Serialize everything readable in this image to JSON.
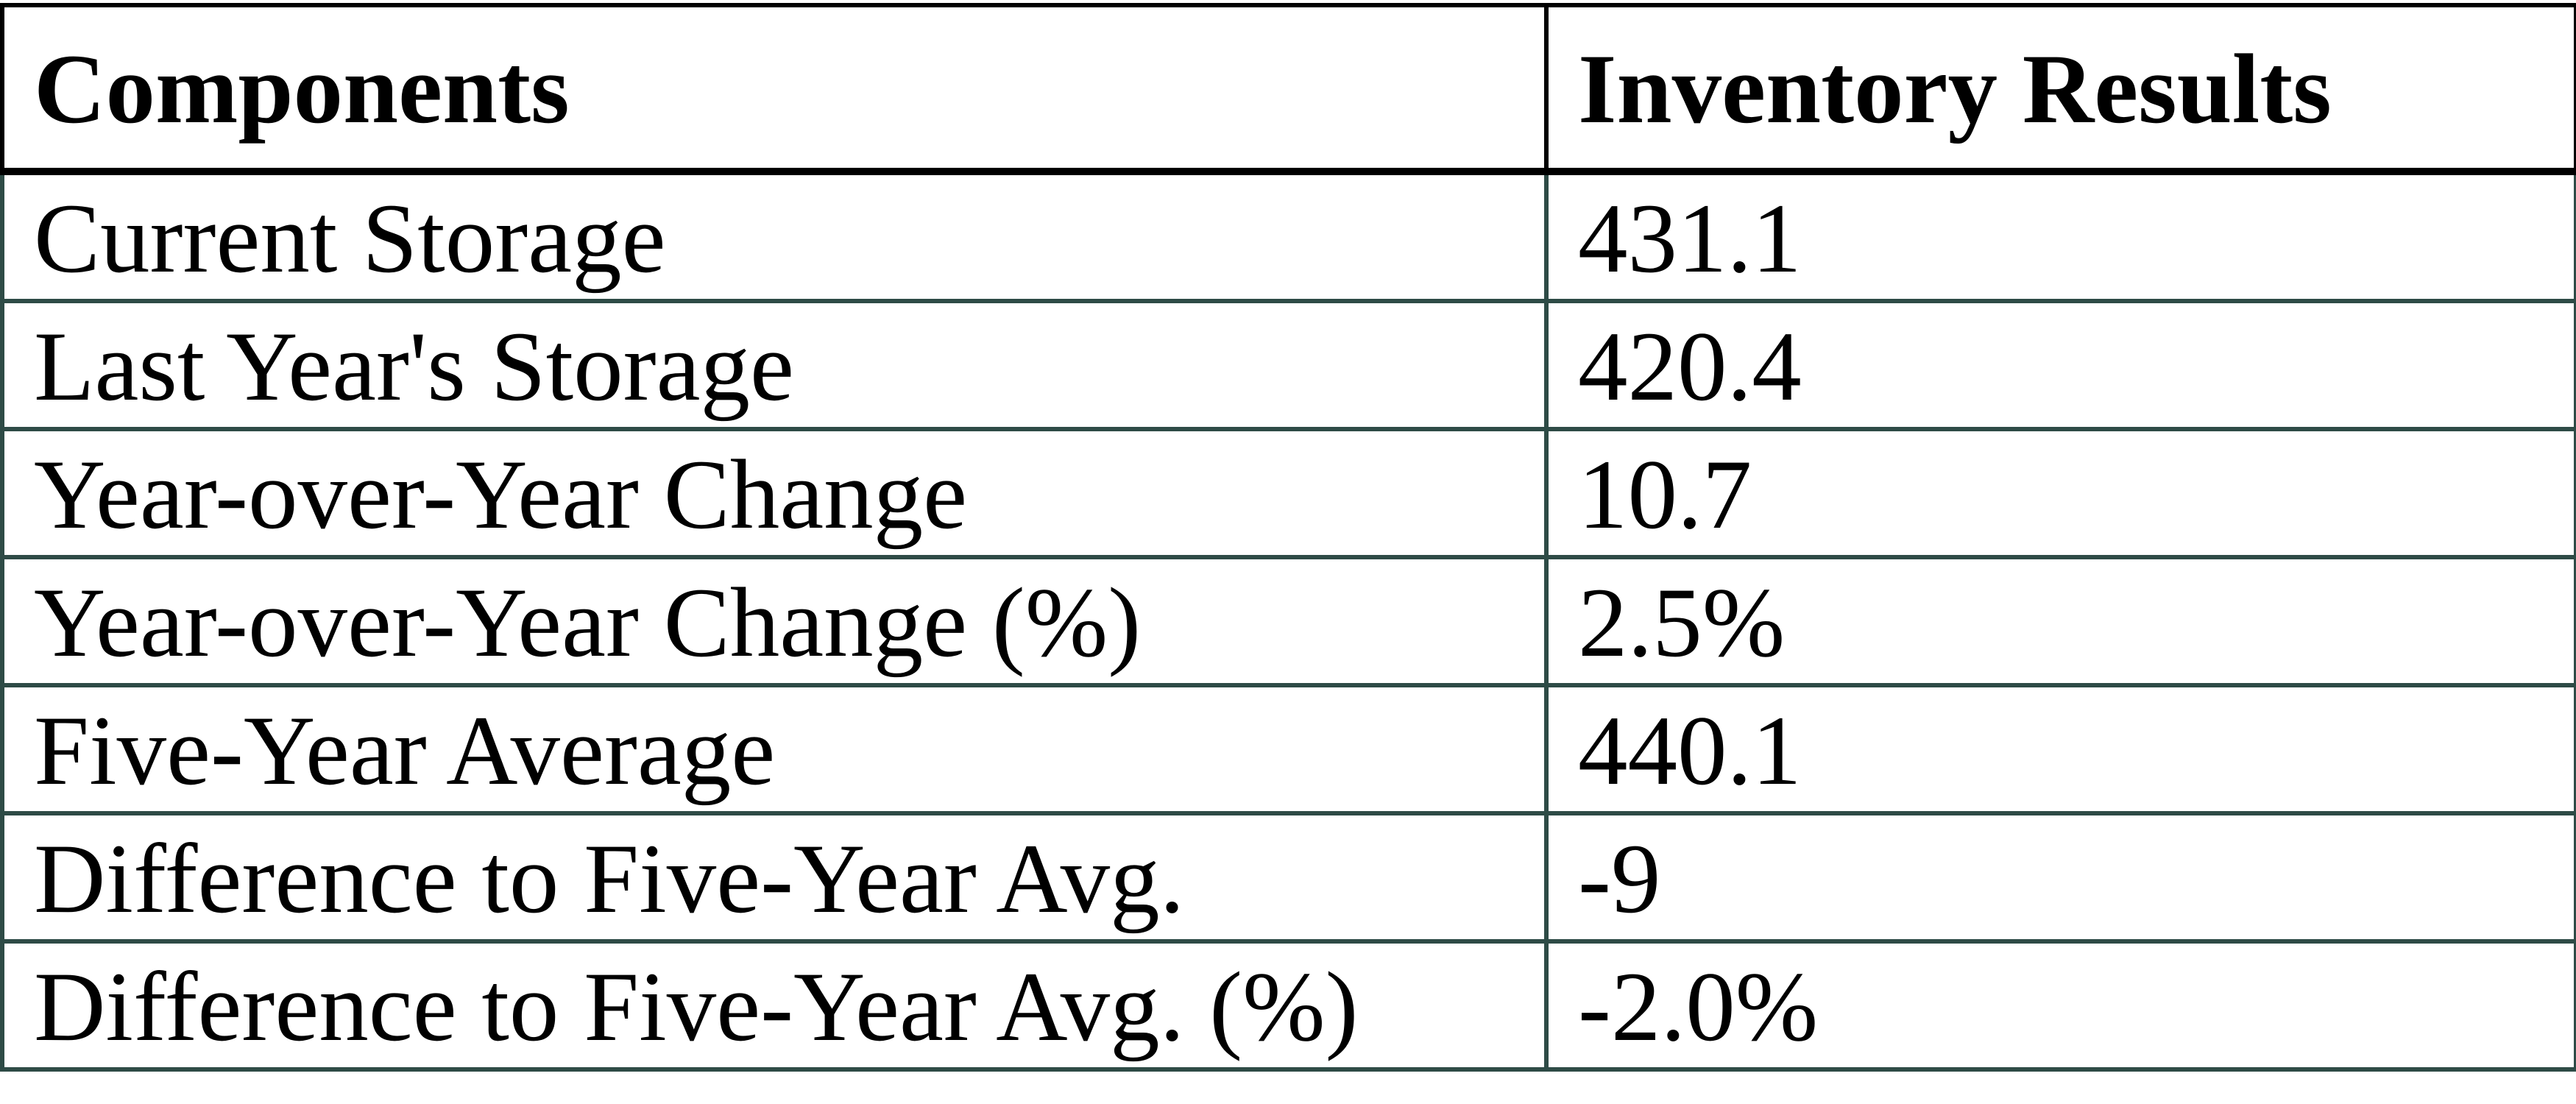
{
  "table": {
    "columns": [
      "Components",
      "Inventory Results"
    ],
    "rows": [
      {
        "label": "Current Storage",
        "value": "431.1"
      },
      {
        "label": "Last Year's Storage",
        "value": "420.4"
      },
      {
        "label": "Year-over-Year Change",
        "value": "10.7"
      },
      {
        "label": "Year-over-Year Change (%)",
        "value": "2.5%"
      },
      {
        "label": "Five-Year Average",
        "value": "440.1"
      },
      {
        "label": "Difference to Five-Year Avg.",
        "value": "-9"
      },
      {
        "label": "Difference to Five-Year Avg. (%)",
        "value": "-2.0%"
      }
    ]
  },
  "colors": {
    "header_border": "#000000",
    "body_border": "#2E4B46",
    "text": "#000000",
    "background": "#ffffff"
  },
  "chart_data": {
    "type": "table",
    "title": "",
    "columns": [
      "Components",
      "Inventory Results"
    ],
    "rows": [
      [
        "Current Storage",
        "431.1"
      ],
      [
        "Last Year's Storage",
        "420.4"
      ],
      [
        "Year-over-Year Change",
        "10.7"
      ],
      [
        "Year-over-Year Change (%)",
        "2.5%"
      ],
      [
        "Five-Year Average",
        "440.1"
      ],
      [
        "Difference to Five-Year Avg.",
        "-9"
      ],
      [
        "Difference to Five-Year Avg. (%)",
        "-2.0%"
      ]
    ],
    "values": {
      "current_storage": 431.1,
      "last_year_storage": 420.4,
      "yoy_change": 10.7,
      "yoy_change_pct": 2.5,
      "five_year_average": 440.1,
      "diff_to_five_year_avg": -9,
      "diff_to_five_year_avg_pct": -2.0
    },
    "layout_hints": {
      "header_row": true,
      "grid": "all-borders",
      "header_border_color": "#000000",
      "body_border_color": "#2E4B46"
    }
  }
}
